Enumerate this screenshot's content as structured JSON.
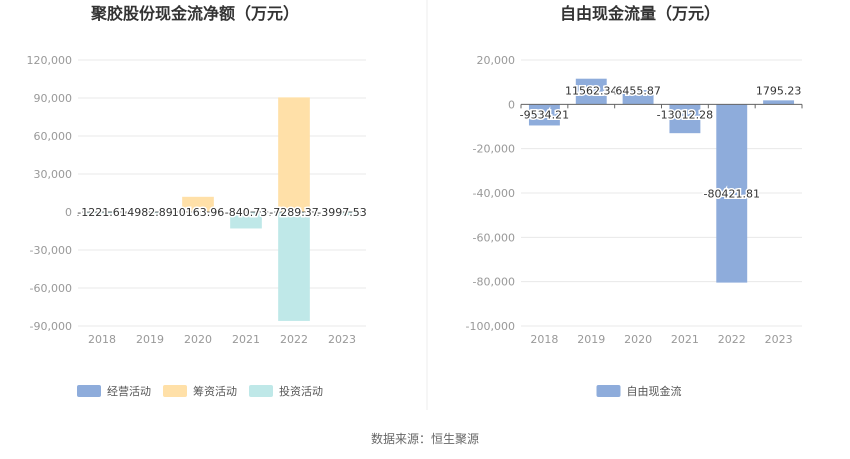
{
  "source_note": "数据来源：恒生聚源",
  "chart_data": [
    {
      "type": "bar",
      "stacked": true,
      "title": "聚胶股份现金流净额（万元）",
      "categories": [
        "2018",
        "2019",
        "2020",
        "2021",
        "2022",
        "2023"
      ],
      "ylim": [
        -90000,
        120000
      ],
      "yticks": [
        120000,
        90000,
        60000,
        30000,
        0,
        -30000,
        -60000,
        -90000
      ],
      "ytick_labels": [
        "120,000",
        "90,000",
        "60,000",
        "30,000",
        "0",
        "-30,000",
        "-60,000",
        "-90,000"
      ],
      "grid": true,
      "legend_position": "bottom",
      "series": [
        {
          "name": "经营活动",
          "color": "#8eacdb",
          "values": [
            null,
            null,
            null,
            null,
            null,
            null
          ]
        },
        {
          "name": "筹资活动",
          "color": "#ffe0a8",
          "values": [
            null,
            null,
            12000,
            null,
            90500,
            null
          ]
        },
        {
          "name": "投资活动",
          "color": "#bfe8e8",
          "values": [
            -1000,
            -2500,
            null,
            -13000,
            -86000,
            -2500
          ]
        }
      ],
      "data_labels": [
        "-1221.61",
        "4982.89",
        "10163.96",
        "-840.73",
        "-7289.37",
        "-3997.53"
      ]
    },
    {
      "type": "bar",
      "title": "自由现金流量（万元）",
      "categories": [
        "2018",
        "2019",
        "2020",
        "2021",
        "2022",
        "2023"
      ],
      "ylim": [
        -100000,
        20000
      ],
      "yticks": [
        20000,
        0,
        -20000,
        -40000,
        -60000,
        -80000,
        -100000
      ],
      "ytick_labels": [
        "20,000",
        "0",
        "-20,000",
        "-40,000",
        "-60,000",
        "-80,000",
        "-100,000"
      ],
      "grid": true,
      "legend_position": "bottom",
      "series": [
        {
          "name": "自由现金流",
          "color": "#8eacdb",
          "values": [
            -9534.21,
            11562.34,
            6455.87,
            -13012.28,
            -80421.81,
            1795.23
          ]
        }
      ],
      "data_labels": [
        "-9534.21",
        "11562.34",
        "6455.87",
        "-13012.28",
        "-80421.81",
        "1795.23"
      ]
    }
  ]
}
